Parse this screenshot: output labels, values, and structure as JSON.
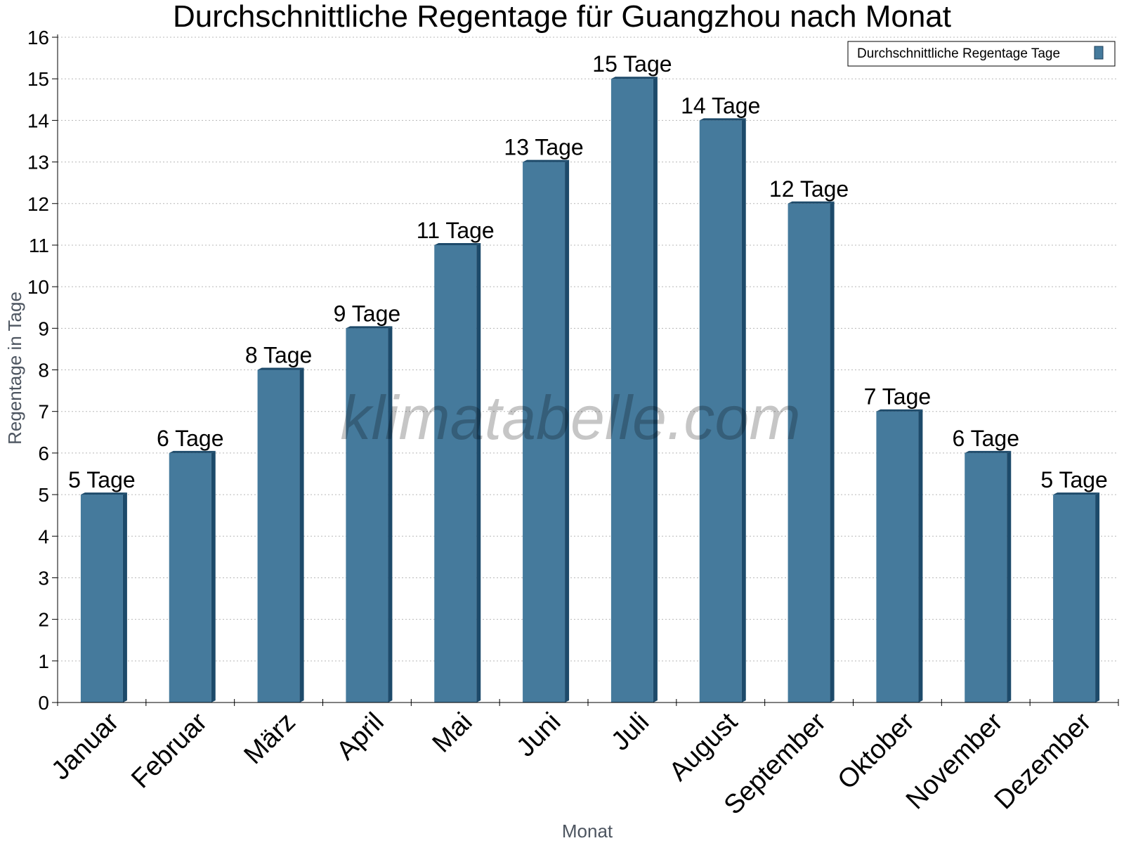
{
  "chart_data": {
    "type": "bar",
    "title": "Durchschnittliche Regentage für Guangzhou nach Monat",
    "xlabel": "Monat",
    "ylabel": "Regentage in Tage",
    "categories": [
      "Januar",
      "Februar",
      "März",
      "April",
      "Mai",
      "Juni",
      "Juli",
      "August",
      "September",
      "Oktober",
      "November",
      "Dezember"
    ],
    "series": [
      {
        "name": "Durchschnittliche Regentage Tage",
        "values": [
          5,
          6,
          8,
          9,
          11,
          13,
          15,
          14,
          12,
          7,
          6,
          5
        ],
        "labels": [
          "5 Tage",
          "6 Tage",
          "8 Tage",
          "9 Tage",
          "11 Tage",
          "13 Tage",
          "15 Tage",
          "14 Tage",
          "12 Tage",
          "7 Tage",
          "6 Tage",
          "5 Tage"
        ],
        "color": "#457a9c",
        "shade_color": "#1d4a6a"
      }
    ],
    "ylim": [
      0,
      16
    ],
    "yticks": [
      0,
      1,
      2,
      3,
      4,
      5,
      6,
      7,
      8,
      9,
      10,
      11,
      12,
      13,
      14,
      15,
      16
    ],
    "grid": true,
    "legend_position": "top-right",
    "watermark": "klimatabelle.com"
  }
}
